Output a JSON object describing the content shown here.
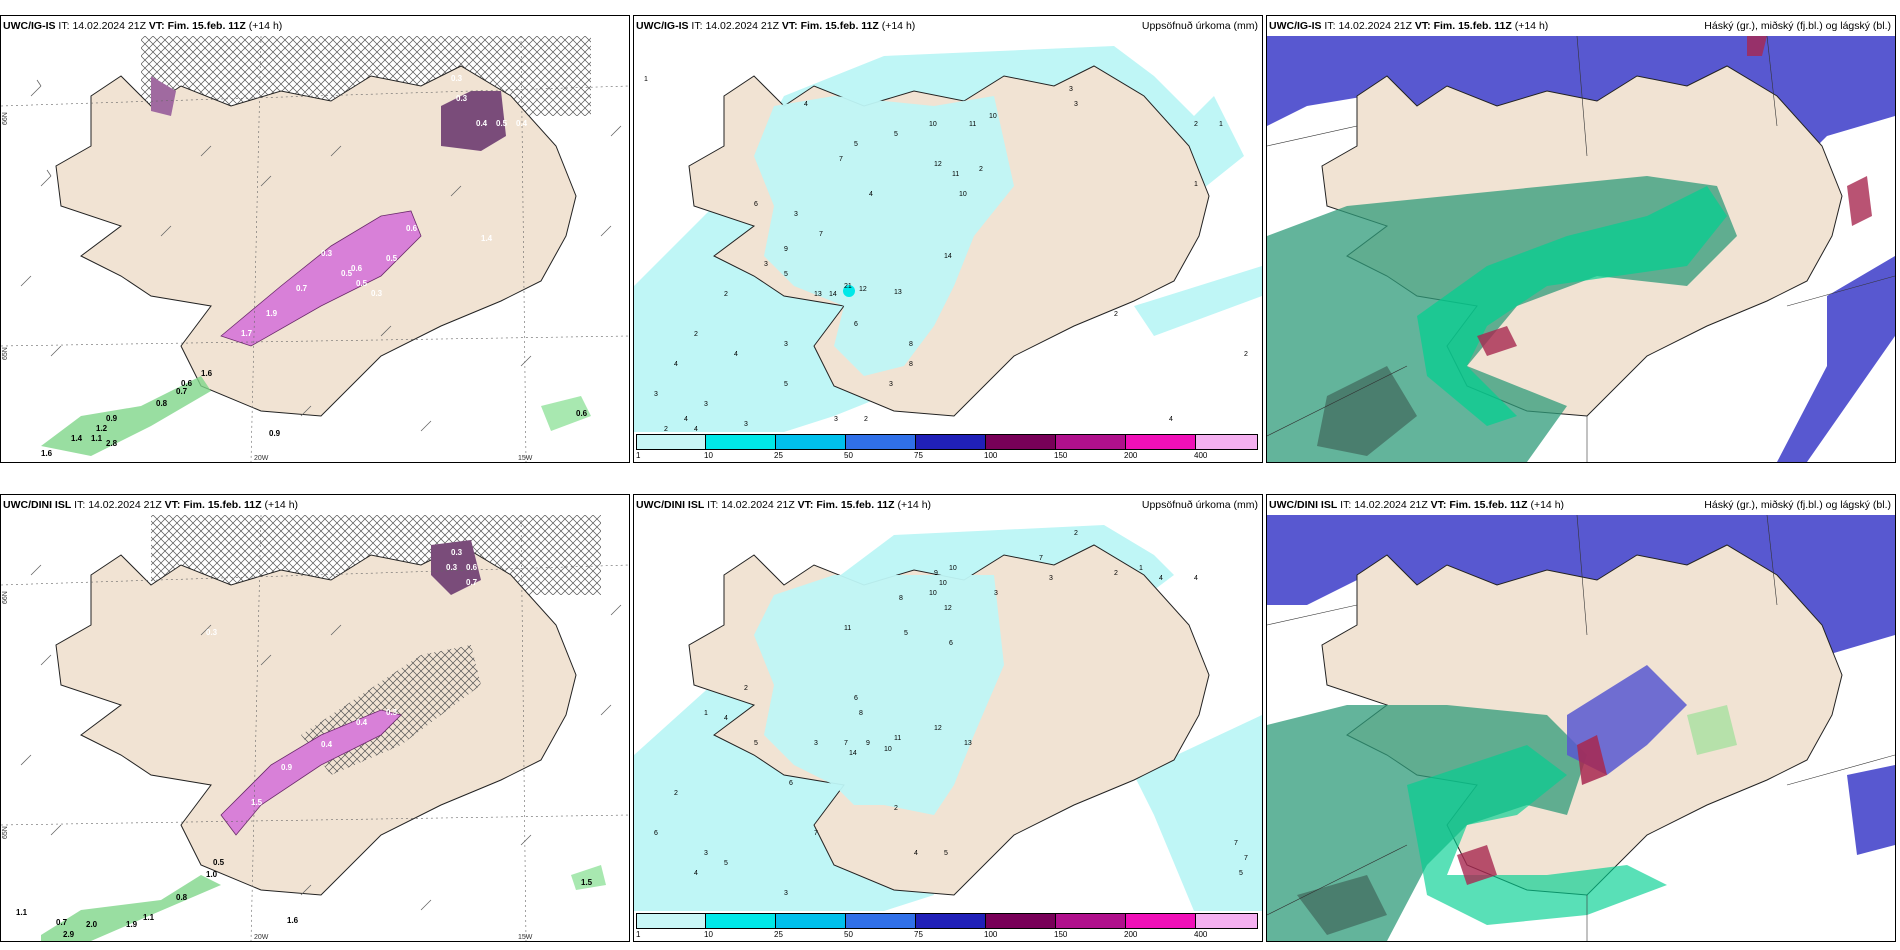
{
  "panels": [
    {
      "id": "p1",
      "model": "UWC/IG-IS",
      "it_label": "IT:",
      "it": "14.02.2024 21Z",
      "vt_label": "VT:",
      "vt": "Fim. 15.feb. 11Z",
      "lead": "(+14 h)",
      "right": ""
    },
    {
      "id": "p2",
      "model": "UWC/IG-IS",
      "it_label": "IT:",
      "it": "14.02.2024 21Z",
      "vt_label": "VT:",
      "vt": "Fim. 15.feb. 11Z",
      "lead": "(+14 h)",
      "right": "Uppsöfnuð úrkoma (mm)"
    },
    {
      "id": "p3",
      "model": "UWC/IG-IS",
      "it_label": "IT:",
      "it": "14.02.2024 21Z",
      "vt_label": "VT:",
      "vt": "Fim. 15.feb. 11Z",
      "lead": "(+14 h)",
      "right": "Háský (gr.), miðský (fj.bl.) og lágský (bl.)"
    },
    {
      "id": "p4",
      "model": "UWC/DINI ISL",
      "it_label": "IT:",
      "it": "14.02.2024 21Z",
      "vt_label": "VT:",
      "vt": "Fim. 15.feb. 11Z",
      "lead": "(+14 h)",
      "right": ""
    },
    {
      "id": "p5",
      "model": "UWC/DINI ISL",
      "it_label": "IT:",
      "it": "14.02.2024 21Z",
      "vt_label": "VT:",
      "vt": "Fim. 15.feb. 11Z",
      "lead": "(+14 h)",
      "right": "Uppsöfnuð úrkoma (mm)"
    },
    {
      "id": "p6",
      "model": "UWC/DINI ISL",
      "it_label": "IT:",
      "it": "14.02.2024 21Z",
      "vt_label": "VT:",
      "vt": "Fim. 15.feb. 11Z",
      "lead": "(+14 h)",
      "right": "Háský (gr.), miðský (fj.bl.) og lágský (bl.)"
    }
  ],
  "axis_labels": {
    "lat66": "66N",
    "lat65": "65N",
    "lat64": "64N",
    "lon20": "20W",
    "lon15": "15W"
  },
  "colorbar": {
    "ticks": [
      "1",
      "10",
      "25",
      "50",
      "75",
      "100",
      "150",
      "200",
      "400"
    ],
    "colors": [
      "#c8f6f6",
      "#00e8e8",
      "#00c0ec",
      "#3070e8",
      "#2020b8",
      "#780058",
      "#b0108c",
      "#f010b8",
      "#f4b0f0"
    ]
  },
  "top_left": {
    "snow_labels": [
      "0.3",
      "0.3",
      "0.5",
      "0.4",
      "0.4",
      "0.6",
      "1.4",
      "0.5",
      "0.5",
      "0.3",
      "0.3",
      "0.6",
      "0.5",
      "0.7",
      "1.9",
      "1.7"
    ],
    "green_labels": [
      "0.8",
      "0.7",
      "0.6",
      "1.6",
      "0.9",
      "1.2",
      "1.4",
      "1.1",
      "2.8",
      "1.6",
      "0.9",
      "0.6"
    ]
  },
  "bottom_left": {
    "snow_labels": [
      "0.3",
      "0.3",
      "0.6",
      "0.7",
      "0.3",
      "0.4",
      "0.4",
      "0.9",
      "1.5",
      "0.5",
      "0.3"
    ],
    "green_labels": [
      "0.5",
      "1.0",
      "0.8",
      "1.1",
      "0.7",
      "2.0",
      "2.9",
      "1.9",
      "1.1",
      "1.6",
      "1.5"
    ]
  },
  "top_middle_values": [
    "1",
    "2",
    "3",
    "4",
    "5",
    "6",
    "7",
    "8",
    "9",
    "10",
    "10",
    "11",
    "12",
    "11",
    "10",
    "13",
    "14",
    "21",
    "12",
    "13",
    "14",
    "3",
    "5",
    "7",
    "4",
    "3",
    "2",
    "1",
    "2",
    "3",
    "5",
    "4",
    "6",
    "3",
    "2",
    "4",
    "3",
    "5",
    "8",
    "2",
    "3",
    "4",
    "3",
    "2",
    "1",
    "4",
    "2",
    "3",
    "3",
    "2",
    "4"
  ],
  "bottom_middle_values": [
    "2",
    "3",
    "2",
    "4",
    "1",
    "7",
    "9",
    "10",
    "10",
    "10",
    "12",
    "8",
    "11",
    "6",
    "3",
    "4",
    "5",
    "6",
    "7",
    "8",
    "9",
    "10",
    "11",
    "12",
    "13",
    "14",
    "3",
    "2",
    "4",
    "5",
    "6",
    "1",
    "2",
    "3",
    "4",
    "5",
    "6",
    "7",
    "2",
    "3",
    "4",
    "5",
    "7",
    "7",
    "5"
  ]
}
